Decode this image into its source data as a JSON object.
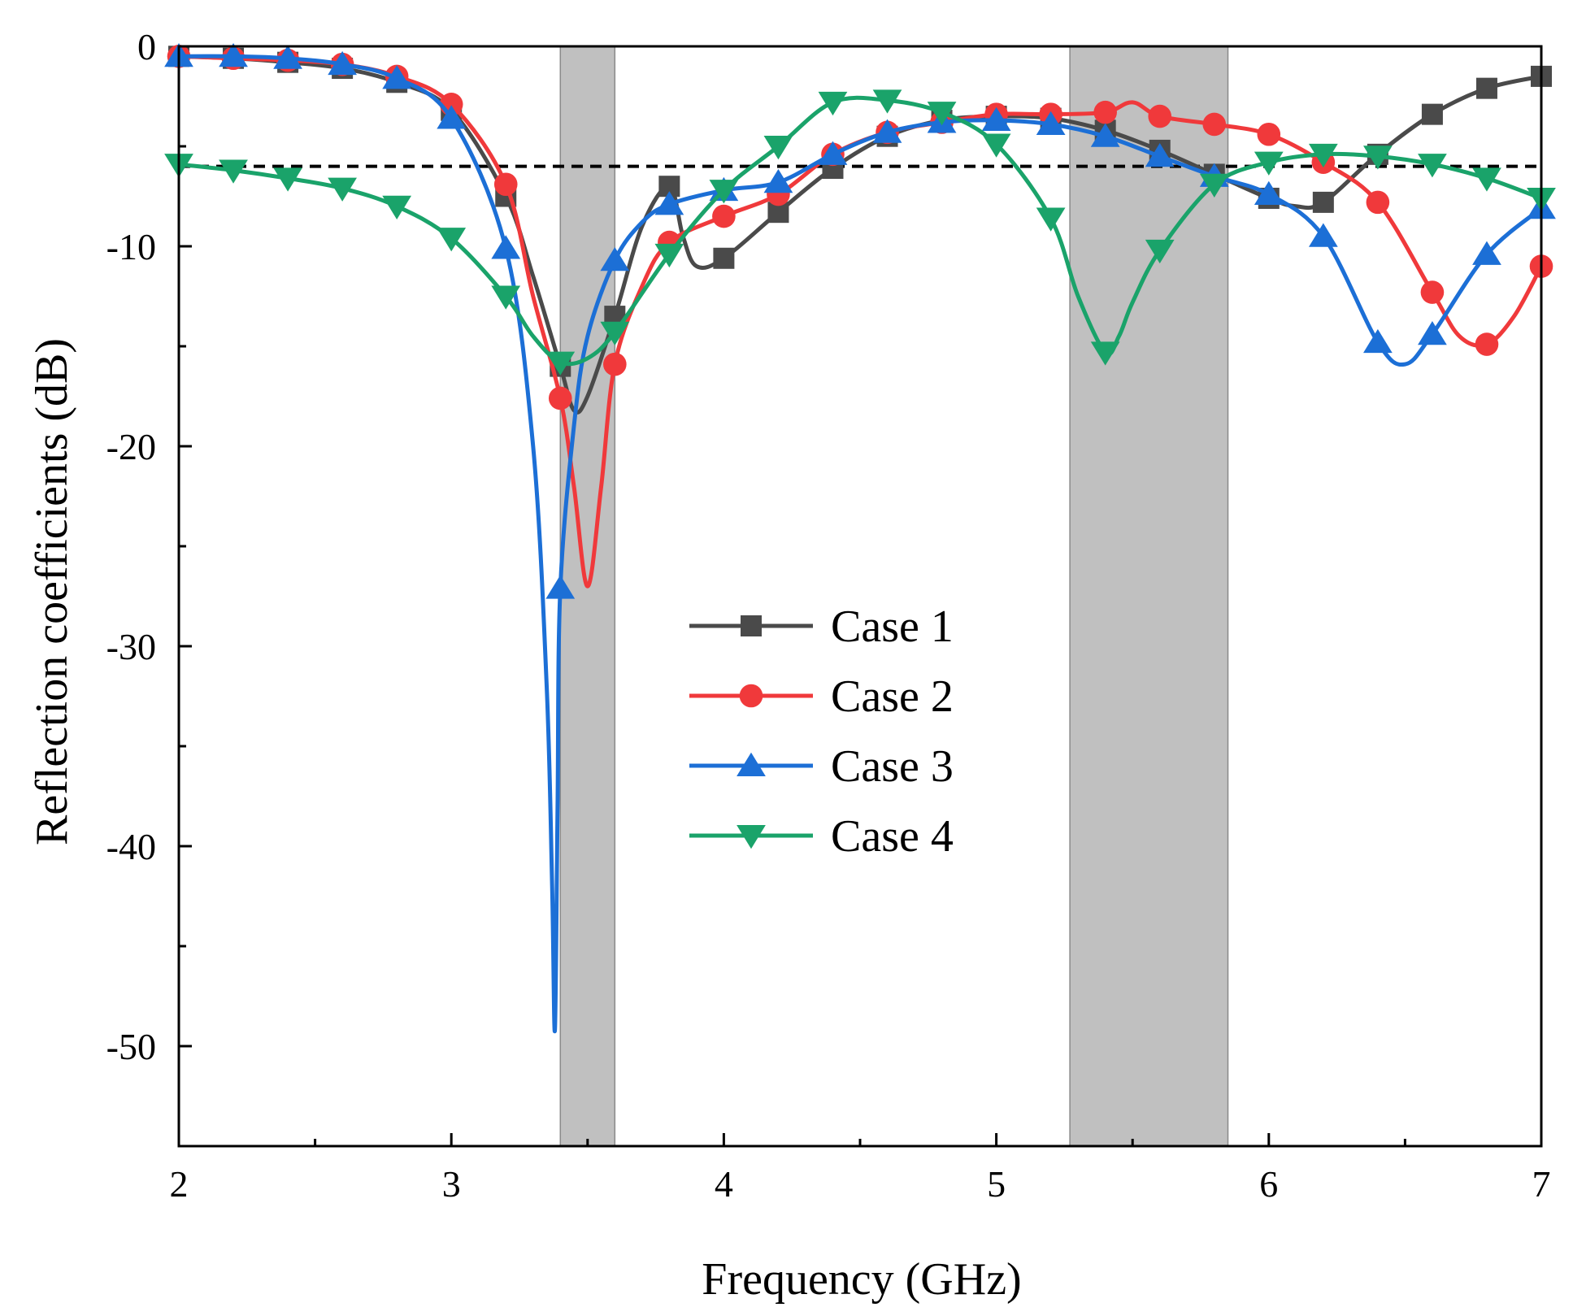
{
  "chart_data": {
    "type": "line",
    "xlabel": "Frequency (GHz)",
    "ylabel": "Reflection coefficients (dB)",
    "xlim": [
      2,
      7
    ],
    "ylim": [
      -55,
      0
    ],
    "xticks": [
      2,
      3,
      4,
      5,
      6,
      7
    ],
    "xtick_labels": [
      "2",
      "3",
      "4",
      "5",
      "6",
      "7"
    ],
    "yticks": [
      0,
      -10,
      -20,
      -30,
      -40,
      -50
    ],
    "ytick_labels": [
      "0",
      "-10",
      "-20",
      "-30",
      "-40",
      "-50"
    ],
    "reference_line": {
      "y": -6,
      "style": "dashed",
      "color": "#000000"
    },
    "shaded_bands": [
      {
        "x_start": 3.4,
        "x_end": 3.6,
        "color": "#c0c0c0"
      },
      {
        "x_start": 5.27,
        "x_end": 5.85,
        "color": "#c0c0c0"
      }
    ],
    "legend": {
      "position": "center"
    },
    "series": [
      {
        "name": "Case 1",
        "color": "#4a4a4a",
        "marker": "square",
        "x": [
          2.0,
          2.2,
          2.4,
          2.6,
          2.8,
          3.0,
          3.2,
          3.3,
          3.4,
          3.45,
          3.5,
          3.6,
          3.7,
          3.8,
          3.85,
          3.9,
          4.0,
          4.2,
          4.4,
          4.6,
          4.8,
          5.0,
          5.2,
          5.4,
          5.6,
          5.8,
          6.0,
          6.1,
          6.2,
          6.4,
          6.6,
          6.8,
          7.0
        ],
        "y": [
          -0.5,
          -0.6,
          -0.8,
          -1.1,
          -1.8,
          -3.2,
          -7.5,
          -11.5,
          -16.0,
          -18.2,
          -17.5,
          -13.5,
          -9.0,
          -7.0,
          -9.5,
          -11.0,
          -10.6,
          -8.3,
          -6.1,
          -4.5,
          -3.7,
          -3.5,
          -3.6,
          -4.2,
          -5.2,
          -6.4,
          -7.6,
          -8.0,
          -7.8,
          -5.4,
          -3.4,
          -2.1,
          -1.5
        ],
        "markers_x": [
          2.0,
          2.2,
          2.4,
          2.6,
          2.8,
          3.0,
          3.2,
          3.4,
          3.6,
          3.8,
          4.0,
          4.2,
          4.4,
          4.6,
          4.8,
          5.0,
          5.2,
          5.4,
          5.6,
          5.8,
          6.0,
          6.2,
          6.4,
          6.6,
          6.8,
          7.0
        ],
        "markers_y": [
          -0.5,
          -0.6,
          -0.8,
          -1.1,
          -1.8,
          -3.2,
          -7.5,
          -16.0,
          -13.5,
          -7.0,
          -10.6,
          -8.3,
          -6.1,
          -4.5,
          -3.7,
          -3.5,
          -3.6,
          -4.2,
          -5.2,
          -6.4,
          -7.6,
          -7.8,
          -5.4,
          -3.4,
          -2.1,
          -1.5
        ]
      },
      {
        "name": "Case 2",
        "color": "#f0393b",
        "marker": "circle",
        "x": [
          2.0,
          2.2,
          2.4,
          2.6,
          2.8,
          3.0,
          3.2,
          3.3,
          3.4,
          3.45,
          3.5,
          3.55,
          3.6,
          3.7,
          3.8,
          4.0,
          4.2,
          4.4,
          4.6,
          4.8,
          5.0,
          5.2,
          5.4,
          5.5,
          5.6,
          5.8,
          6.0,
          6.2,
          6.4,
          6.6,
          6.7,
          6.8,
          6.9,
          7.0
        ],
        "y": [
          -0.5,
          -0.6,
          -0.7,
          -0.9,
          -1.5,
          -2.9,
          -6.9,
          -12.5,
          -17.6,
          -22.0,
          -27.0,
          -22.0,
          -15.9,
          -12.0,
          -9.8,
          -8.5,
          -7.4,
          -5.4,
          -4.3,
          -3.8,
          -3.4,
          -3.4,
          -3.3,
          -2.8,
          -3.5,
          -3.9,
          -4.4,
          -5.8,
          -7.8,
          -12.3,
          -14.5,
          -14.9,
          -13.5,
          -11.0
        ],
        "markers_x": [
          2.0,
          2.2,
          2.4,
          2.6,
          2.8,
          3.0,
          3.2,
          3.4,
          3.6,
          3.8,
          4.0,
          4.2,
          4.4,
          4.6,
          4.8,
          5.0,
          5.2,
          5.4,
          5.6,
          5.8,
          6.0,
          6.2,
          6.4,
          6.6,
          6.8,
          7.0
        ],
        "markers_y": [
          -0.5,
          -0.6,
          -0.7,
          -0.9,
          -1.5,
          -2.9,
          -6.9,
          -17.6,
          -15.9,
          -9.8,
          -8.5,
          -7.4,
          -5.4,
          -4.3,
          -3.8,
          -3.4,
          -3.4,
          -3.3,
          -3.5,
          -3.9,
          -4.4,
          -5.8,
          -7.8,
          -12.3,
          -14.9,
          -11.0
        ]
      },
      {
        "name": "Case 3",
        "color": "#1c6fd6",
        "marker": "triangle-up",
        "x": [
          2.0,
          2.2,
          2.4,
          2.6,
          2.8,
          3.0,
          3.2,
          3.3,
          3.35,
          3.37,
          3.38,
          3.39,
          3.4,
          3.45,
          3.5,
          3.6,
          3.7,
          3.8,
          4.0,
          4.2,
          4.4,
          4.6,
          4.8,
          5.0,
          5.2,
          5.4,
          5.6,
          5.8,
          6.0,
          6.2,
          6.4,
          6.5,
          6.6,
          6.8,
          7.0
        ],
        "y": [
          -0.5,
          -0.5,
          -0.6,
          -0.9,
          -1.6,
          -3.6,
          -10.1,
          -20.0,
          -32.0,
          -42.0,
          -49.2,
          -38.0,
          -27.1,
          -19.0,
          -14.5,
          -10.7,
          -8.8,
          -7.9,
          -7.2,
          -6.8,
          -5.4,
          -4.3,
          -3.8,
          -3.7,
          -3.9,
          -4.5,
          -5.5,
          -6.5,
          -7.4,
          -9.5,
          -14.8,
          -15.9,
          -14.4,
          -10.4,
          -8.1
        ],
        "markers_x": [
          2.0,
          2.2,
          2.4,
          2.6,
          2.8,
          3.0,
          3.2,
          3.4,
          3.6,
          3.8,
          4.0,
          4.2,
          4.4,
          4.6,
          4.8,
          5.0,
          5.2,
          5.4,
          5.6,
          5.8,
          6.0,
          6.2,
          6.4,
          6.6,
          6.8,
          7.0
        ],
        "markers_y": [
          -0.5,
          -0.5,
          -0.6,
          -0.9,
          -1.6,
          -3.6,
          -10.1,
          -27.1,
          -10.7,
          -7.9,
          -7.2,
          -6.8,
          -5.4,
          -4.3,
          -3.8,
          -3.7,
          -3.9,
          -4.5,
          -5.5,
          -6.5,
          -7.4,
          -9.5,
          -14.8,
          -14.4,
          -10.4,
          -8.1
        ]
      },
      {
        "name": "Case 4",
        "color": "#1aa36a",
        "marker": "triangle-down",
        "x": [
          2.0,
          2.2,
          2.4,
          2.6,
          2.8,
          3.0,
          3.2,
          3.3,
          3.4,
          3.5,
          3.6,
          3.8,
          4.0,
          4.2,
          4.4,
          4.6,
          4.8,
          5.0,
          5.2,
          5.3,
          5.4,
          5.45,
          5.5,
          5.6,
          5.8,
          6.0,
          6.2,
          6.4,
          6.6,
          6.8,
          7.0
        ],
        "y": [
          -5.9,
          -6.2,
          -6.6,
          -7.1,
          -8.0,
          -9.6,
          -12.5,
          -14.5,
          -15.8,
          -15.6,
          -14.3,
          -10.4,
          -7.2,
          -5.0,
          -2.8,
          -2.7,
          -3.3,
          -4.9,
          -8.6,
          -12.5,
          -15.3,
          -14.5,
          -12.8,
          -10.2,
          -6.9,
          -5.8,
          -5.4,
          -5.5,
          -5.9,
          -6.6,
          -7.6
        ],
        "markers_x": [
          2.0,
          2.2,
          2.4,
          2.6,
          2.8,
          3.0,
          3.2,
          3.4,
          3.6,
          3.8,
          4.0,
          4.2,
          4.4,
          4.6,
          4.8,
          5.0,
          5.2,
          5.4,
          5.6,
          5.8,
          6.0,
          6.2,
          6.4,
          6.6,
          6.8,
          7.0
        ],
        "markers_y": [
          -5.9,
          -6.2,
          -6.6,
          -7.1,
          -8.0,
          -9.6,
          -12.5,
          -15.8,
          -14.3,
          -10.4,
          -7.2,
          -5.0,
          -2.8,
          -2.7,
          -3.3,
          -4.9,
          -8.6,
          -15.3,
          -10.2,
          -6.9,
          -5.8,
          -5.4,
          -5.5,
          -5.9,
          -6.6,
          -7.6
        ]
      }
    ]
  }
}
